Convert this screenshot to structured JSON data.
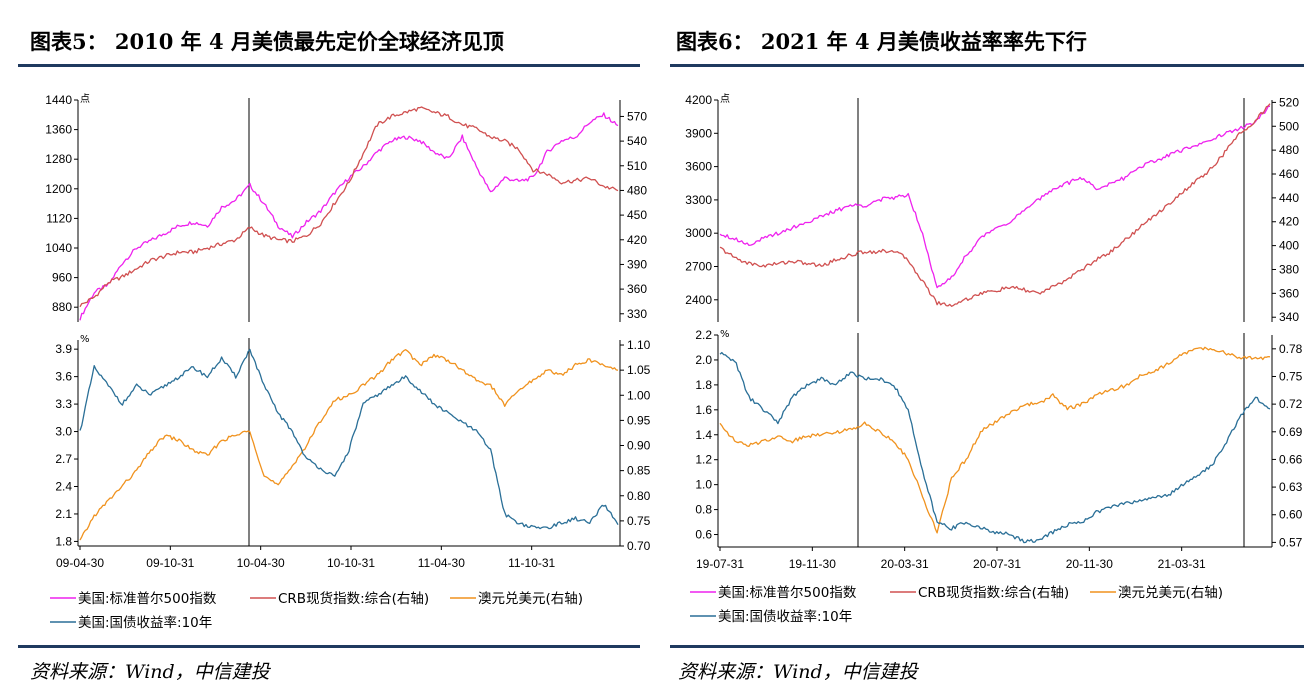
{
  "left_panel": {
    "title": "图表5：  2010 年 4 月美债最先定价全球经济见顶",
    "source": "资料来源：Wind，中信建投"
  },
  "right_panel": {
    "title": "图表6：  2021 年 4 月美债收益率率先下行",
    "source": "资料来源：Wind，中信建投"
  },
  "colors": {
    "sp500": "#ee22ee",
    "crb": "#d05050",
    "audusd": "#f0921e",
    "ust10y": "#2a6f97",
    "rule": "#1f3a5f"
  },
  "chart_data": [
    {
      "type": "line",
      "subplot": "left-top",
      "x_ticks": [
        "09-04-30",
        "09-10-31",
        "10-04-30",
        "10-10-31",
        "11-04-30",
        "11-10-31"
      ],
      "y_left_ticks": [
        "880",
        "960",
        "1040",
        "1120",
        "1200",
        "1280",
        "1360",
        "1440"
      ],
      "y_left_unit": "点",
      "y_left_range": [
        840,
        1440
      ],
      "y_right_ticks": [
        "330",
        "360",
        "390",
        "420",
        "450",
        "480",
        "510",
        "540",
        "570"
      ],
      "y_right_range": [
        320,
        590
      ],
      "series": [
        {
          "name": "美国:标准普尔500指数",
          "axis": "left",
          "color": "#ee22ee",
          "values": [
            850,
            920,
            940,
            1000,
            1040,
            1060,
            1080,
            1100,
            1110,
            1100,
            1150,
            1170,
            1210,
            1160,
            1100,
            1070,
            1110,
            1140,
            1190,
            1230,
            1260,
            1300,
            1330,
            1340,
            1330,
            1300,
            1280,
            1340,
            1260,
            1190,
            1230,
            1220,
            1230,
            1300,
            1330,
            1340,
            1380,
            1400,
            1370
          ]
        },
        {
          "name": "CRB现货指数:综合(右轴)",
          "axis": "right",
          "color": "#d05050",
          "values": [
            340,
            350,
            368,
            375,
            385,
            395,
            400,
            405,
            405,
            410,
            415,
            420,
            435,
            425,
            420,
            418,
            425,
            440,
            465,
            490,
            525,
            560,
            570,
            575,
            580,
            575,
            570,
            560,
            555,
            545,
            540,
            530,
            505,
            500,
            490,
            492,
            495,
            485,
            480
          ]
        }
      ]
    },
    {
      "type": "line",
      "subplot": "left-bottom",
      "x_ticks": [
        "09-04-30",
        "09-10-31",
        "10-04-30",
        "10-10-31",
        "11-04-30",
        "11-10-31"
      ],
      "y_left_ticks": [
        "1.8",
        "2.1",
        "2.4",
        "2.7",
        "3.0",
        "3.3",
        "3.6",
        "3.9"
      ],
      "y_left_unit": "%",
      "y_left_range": [
        1.75,
        4.0
      ],
      "y_right_ticks": [
        "0.70",
        "0.75",
        "0.80",
        "0.85",
        "0.90",
        "0.95",
        "1.00",
        "1.05",
        "1.10"
      ],
      "y_right_range": [
        0.7,
        1.11
      ],
      "series": [
        {
          "name": "澳元兑美元(右轴)",
          "axis": "right",
          "color": "#f0921e",
          "values": [
            0.71,
            0.76,
            0.79,
            0.82,
            0.85,
            0.89,
            0.92,
            0.91,
            0.89,
            0.88,
            0.91,
            0.92,
            0.93,
            0.84,
            0.82,
            0.86,
            0.9,
            0.95,
            0.99,
            1.0,
            1.02,
            1.04,
            1.07,
            1.09,
            1.06,
            1.08,
            1.07,
            1.05,
            1.03,
            1.02,
            0.98,
            1.01,
            1.03,
            1.05,
            1.04,
            1.06,
            1.07,
            1.06,
            1.05
          ]
        },
        {
          "name": "美国:国债收益率:10年",
          "axis": "left",
          "color": "#2a6f97",
          "values": [
            3.0,
            3.7,
            3.5,
            3.3,
            3.5,
            3.4,
            3.5,
            3.6,
            3.7,
            3.6,
            3.8,
            3.6,
            3.9,
            3.5,
            3.2,
            3.0,
            2.7,
            2.6,
            2.5,
            2.8,
            3.3,
            3.4,
            3.5,
            3.6,
            3.45,
            3.3,
            3.2,
            3.1,
            3.0,
            2.8,
            2.1,
            2.0,
            1.95,
            1.95,
            2.0,
            2.05,
            2.0,
            2.2,
            2.0
          ]
        }
      ]
    },
    {
      "type": "line",
      "subplot": "right-top",
      "x_ticks": [
        "19-07-31",
        "19-11-30",
        "20-03-31",
        "20-07-31",
        "20-11-30",
        "21-03-31"
      ],
      "y_left_ticks": [
        "2400",
        "2700",
        "3000",
        "3300",
        "3600",
        "3900",
        "4200"
      ],
      "y_left_unit": "点",
      "y_left_range": [
        2200,
        4200
      ],
      "y_right_ticks": [
        "340",
        "360",
        "380",
        "400",
        "420",
        "440",
        "460",
        "480",
        "500",
        "520"
      ],
      "y_right_range": [
        336,
        522
      ],
      "series": [
        {
          "name": "美国:标准普尔500指数",
          "axis": "left",
          "color": "#ee22ee",
          "values": [
            3000,
            2950,
            2900,
            2950,
            3000,
            3050,
            3100,
            3150,
            3200,
            3250,
            3250,
            3300,
            3320,
            3350,
            3000,
            2500,
            2600,
            2800,
            2950,
            3050,
            3100,
            3200,
            3300,
            3400,
            3450,
            3500,
            3400,
            3450,
            3500,
            3600,
            3650,
            3700,
            3750,
            3800,
            3850,
            3900,
            3950,
            4000,
            4150
          ]
        },
        {
          "name": "CRB现货指数:综合(右轴)",
          "axis": "right",
          "color": "#d05050",
          "values": [
            398,
            390,
            385,
            383,
            385,
            387,
            385,
            383,
            388,
            392,
            395,
            395,
            396,
            388,
            370,
            352,
            350,
            355,
            360,
            362,
            365,
            363,
            360,
            365,
            372,
            380,
            388,
            395,
            405,
            415,
            425,
            435,
            445,
            455,
            465,
            480,
            495,
            505,
            518
          ]
        }
      ]
    },
    {
      "type": "line",
      "subplot": "right-bottom",
      "x_ticks": [
        "19-07-31",
        "19-11-30",
        "20-03-31",
        "20-07-31",
        "20-11-30",
        "21-03-31"
      ],
      "y_left_ticks": [
        "0.6",
        "0.8",
        "1.0",
        "1.2",
        "1.4",
        "1.6",
        "1.8",
        "2.0",
        "2.2"
      ],
      "y_left_unit": "%",
      "y_left_range": [
        0.5,
        2.2
      ],
      "y_right_ticks": [
        "0.57",
        "0.60",
        "0.63",
        "0.66",
        "0.69",
        "0.72",
        "0.75",
        "0.78"
      ],
      "y_right_range": [
        0.565,
        0.795
      ],
      "series": [
        {
          "name": "澳元兑美元(右轴)",
          "axis": "right",
          "color": "#f0921e",
          "values": [
            0.7,
            0.68,
            0.675,
            0.68,
            0.685,
            0.68,
            0.685,
            0.688,
            0.69,
            0.692,
            0.7,
            0.69,
            0.68,
            0.66,
            0.62,
            0.58,
            0.64,
            0.66,
            0.69,
            0.7,
            0.71,
            0.72,
            0.72,
            0.73,
            0.715,
            0.72,
            0.73,
            0.735,
            0.74,
            0.75,
            0.755,
            0.765,
            0.775,
            0.78,
            0.78,
            0.775,
            0.77,
            0.77,
            0.77
          ]
        },
        {
          "name": "美国:国债收益率:10年",
          "axis": "left",
          "color": "#2a6f97",
          "values": [
            2.05,
            2.0,
            1.7,
            1.6,
            1.5,
            1.7,
            1.8,
            1.85,
            1.8,
            1.9,
            1.85,
            1.85,
            1.8,
            1.6,
            1.1,
            0.7,
            0.65,
            0.7,
            0.65,
            0.62,
            0.6,
            0.55,
            0.55,
            0.62,
            0.68,
            0.7,
            0.78,
            0.82,
            0.85,
            0.87,
            0.9,
            0.92,
            1.0,
            1.08,
            1.15,
            1.35,
            1.55,
            1.7,
            1.6
          ]
        }
      ]
    }
  ],
  "legends": {
    "left": {
      "items": [
        {
          "label": "美国:标准普尔500指数",
          "color": "#ee22ee"
        },
        {
          "label": "CRB现货指数:综合(右轴)",
          "color": "#d05050"
        },
        {
          "label": "澳元兑美元(右轴)",
          "color": "#f0921e"
        },
        {
          "label": "美国:国债收益率:10年",
          "color": "#2a6f97"
        }
      ]
    },
    "right": {
      "items": [
        {
          "label": "美国:标准普尔500指数",
          "color": "#ee22ee"
        },
        {
          "label": "CRB现货指数:综合(右轴)",
          "color": "#d05050"
        },
        {
          "label": "澳元兑美元(右轴)",
          "color": "#f0921e"
        },
        {
          "label": "美国:国债收益率:10年",
          "color": "#2a6f97"
        }
      ]
    }
  }
}
